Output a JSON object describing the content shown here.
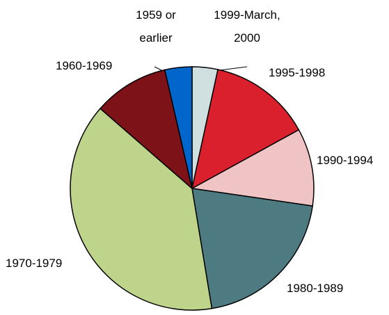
{
  "chart_data": {
    "type": "pie",
    "categories": [
      "1999-March,\n2000",
      "1995-1998",
      "1990-1994",
      "1980-1989",
      "1970-1979",
      "1960-1969",
      "1959 or\nearlier"
    ],
    "values": [
      3.4,
      13.6,
      10.3,
      20.1,
      39.0,
      10.0,
      3.6
    ],
    "colors": [
      "#d0dfe0",
      "#d9202c",
      "#f0c4c4",
      "#4e7b82",
      "#bdd48a",
      "#7d1219",
      "#0066cc"
    ]
  }
}
